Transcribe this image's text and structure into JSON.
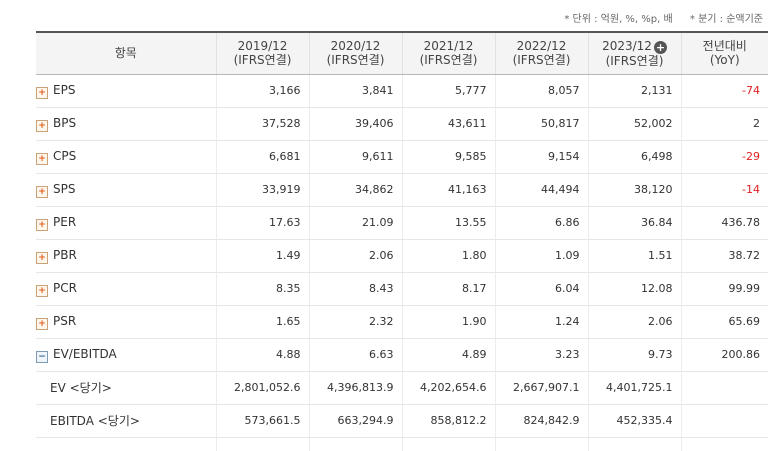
{
  "unit_note": {
    "unit": "* 단위 : 억원, %, %p, 배",
    "quarter": "* 분기 : 순액기준"
  },
  "header": {
    "item": "항목",
    "columns": [
      {
        "year": "2019/12",
        "basis": "(IFRS연결)"
      },
      {
        "year": "2020/12",
        "basis": "(IFRS연결)"
      },
      {
        "year": "2021/12",
        "basis": "(IFRS연결)"
      },
      {
        "year": "2022/12",
        "basis": "(IFRS연결)"
      },
      {
        "year": "2023/12",
        "basis": "(IFRS연결)"
      }
    ],
    "yoy_line1": "전년대비",
    "yoy_line2": "(YoY)"
  },
  "rows": [
    {
      "label": "EPS",
      "toggle": "+",
      "values": [
        "3,166",
        "3,841",
        "5,777",
        "8,057",
        "2,131"
      ],
      "yoy": "-74"
    },
    {
      "label": "BPS",
      "toggle": "+",
      "values": [
        "37,528",
        "39,406",
        "43,611",
        "50,817",
        "52,002"
      ],
      "yoy": "2"
    },
    {
      "label": "CPS",
      "toggle": "+",
      "values": [
        "6,681",
        "9,611",
        "9,585",
        "9,154",
        "6,498"
      ],
      "yoy": "-29"
    },
    {
      "label": "SPS",
      "toggle": "+",
      "values": [
        "33,919",
        "34,862",
        "41,163",
        "44,494",
        "38,120"
      ],
      "yoy": "-14"
    },
    {
      "label": "PER",
      "toggle": "+",
      "values": [
        "17.63",
        "21.09",
        "13.55",
        "6.86",
        "36.84"
      ],
      "yoy": "436.78"
    },
    {
      "label": "PBR",
      "toggle": "+",
      "values": [
        "1.49",
        "2.06",
        "1.80",
        "1.09",
        "1.51"
      ],
      "yoy": "38.72"
    },
    {
      "label": "PCR",
      "toggle": "+",
      "values": [
        "8.35",
        "8.43",
        "8.17",
        "6.04",
        "12.08"
      ],
      "yoy": "99.99"
    },
    {
      "label": "PSR",
      "toggle": "+",
      "values": [
        "1.65",
        "2.32",
        "1.90",
        "1.24",
        "2.06"
      ],
      "yoy": "65.69"
    },
    {
      "label": "EV/EBITDA",
      "toggle": "-",
      "values": [
        "4.88",
        "6.63",
        "4.89",
        "3.23",
        "9.73"
      ],
      "yoy": "200.86"
    },
    {
      "label": "EV <당기>",
      "toggle": "",
      "values": [
        "2,801,052.6",
        "4,396,813.9",
        "4,202,654.6",
        "2,667,907.1",
        "4,401,725.1"
      ],
      "yoy": ""
    },
    {
      "label": "EBITDA <당기>",
      "toggle": "",
      "values": [
        "573,661.5",
        "663,294.9",
        "858,812.2",
        "824,842.9",
        "452,335.4"
      ],
      "yoy": ""
    }
  ],
  "colors": {
    "negative": "#e02020",
    "header_bg": "#f4f4f4",
    "expand_icon": "#e05a1a"
  }
}
